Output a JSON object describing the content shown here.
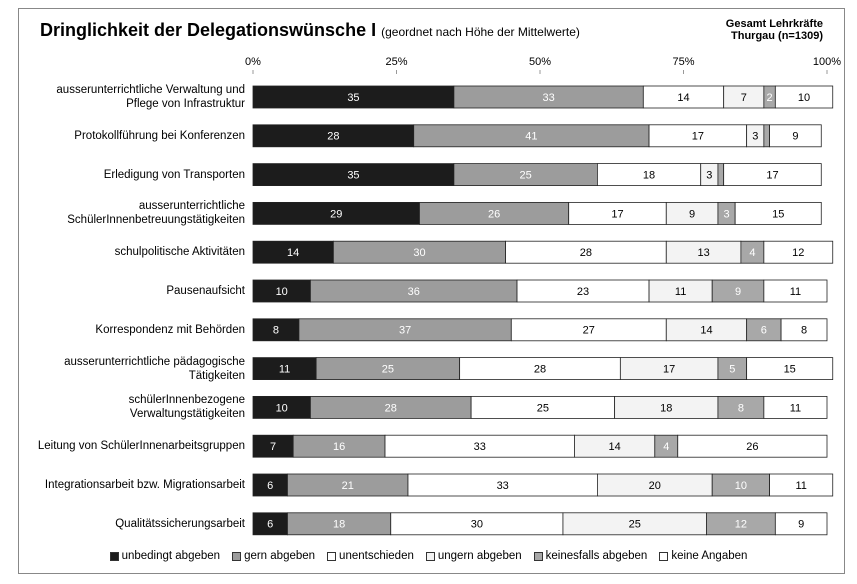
{
  "chart_data": {
    "type": "stacked-barh",
    "title": "Dringlichkeit der Delegationswünsche I",
    "subtitle": "(geordnet nach Höhe der Mittelwerte)",
    "note": "Gesamt Lehrkräfte Thurgau (n=1309)",
    "categories": [
      "ausserunterrichtliche Verwaltung und Pflege von Infrastruktur",
      "Protokollführung bei Konferenzen",
      "Erledigung von Transporten",
      "ausserunterrichtliche SchülerInnenbetreuungstätigkeiten",
      "schulpolitische Aktivitäten",
      "Pausenaufsicht",
      "Korrespondenz mit Behörden",
      "ausserunterrichtliche pädagogische Tätigkeiten",
      "schülerInnenbezogene Verwaltungstätigkeiten",
      "Leitung von SchülerInnenarbeitsgruppen",
      "Integrationsarbeit bzw. Migrationsarbeit",
      "Qualitätssicherungsarbeit"
    ],
    "series": [
      {
        "name": "unbedingt abgeben",
        "color": "#1c1c1c",
        "text_color": "#ffffff",
        "values": [
          35,
          28,
          35,
          29,
          14,
          10,
          8,
          11,
          10,
          7,
          6,
          6
        ]
      },
      {
        "name": "gern abgeben",
        "color": "#9c9c9c",
        "text_color": "#ffffff",
        "values": [
          33,
          41,
          25,
          26,
          30,
          36,
          37,
          25,
          28,
          16,
          21,
          18
        ]
      },
      {
        "name": "unentschieden",
        "color": "#ffffff",
        "text_color": "#000000",
        "values": [
          14,
          17,
          18,
          17,
          28,
          23,
          27,
          28,
          25,
          33,
          33,
          30
        ]
      },
      {
        "name": "ungern abgeben",
        "color": "#f3f3f3",
        "text_color": "#000000",
        "values": [
          7,
          3,
          3,
          9,
          13,
          11,
          14,
          17,
          18,
          14,
          20,
          25
        ]
      },
      {
        "name": "keinesfalls abgeben",
        "color": "#a8a8a8",
        "text_color": "#ffffff",
        "values": [
          2,
          1,
          1,
          3,
          4,
          9,
          6,
          5,
          8,
          4,
          10,
          12
        ],
        "value_labels": [
          "2",
          null,
          null,
          "3",
          "4",
          "9",
          "6",
          "5",
          "8",
          "4",
          "10",
          "12"
        ]
      },
      {
        "name": "keine Angaben",
        "color": "#ffffff",
        "text_color": "#000000",
        "values": [
          10,
          9,
          17,
          15,
          12,
          11,
          8,
          15,
          11,
          26,
          11,
          9
        ]
      }
    ],
    "xlim": [
      0,
      100
    ],
    "xticks": [
      {
        "value": 0,
        "label": "0%"
      },
      {
        "value": 25,
        "label": "25%"
      },
      {
        "value": 50,
        "label": "50%"
      },
      {
        "value": 75,
        "label": "75%"
      },
      {
        "value": 100,
        "label": "100%"
      }
    ]
  }
}
